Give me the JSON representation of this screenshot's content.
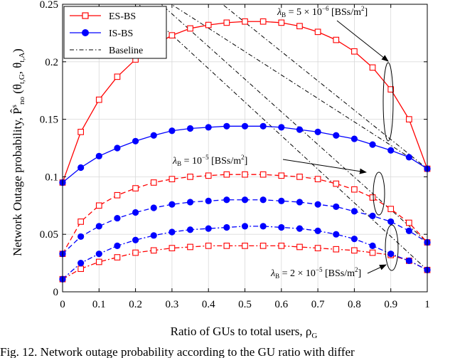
{
  "chart_data": {
    "type": "line",
    "xlabel": "Ratio of GUs to total users, ρ",
    "xlabel_sub": "G",
    "ylabel": "Network Outage probability, P̂",
    "ylabel_sup": "s",
    "ylabel_sub": "no",
    "ylabel_args": " (θ",
    "ylabel_args_sub1": "t,G",
    "ylabel_args_mid": ", θ",
    "ylabel_args_sub2": "t,A",
    "ylabel_args_end": ")",
    "xlim": [
      0,
      1
    ],
    "ylim": [
      0,
      0.25
    ],
    "xticks": [
      0,
      0.1,
      0.2,
      0.3,
      0.4,
      0.5,
      0.6,
      0.7,
      0.8,
      0.9,
      1
    ],
    "xtick_labels": [
      "0",
      "0.1",
      "0.2",
      "0.3",
      "0.4",
      "0.5",
      "0.6",
      "0.7",
      "0.8",
      "0.9",
      "1"
    ],
    "yticks": [
      0,
      0.05,
      0.1,
      0.15,
      0.2,
      0.25
    ],
    "ytick_labels": [
      "0",
      "0.05",
      "0.1",
      "0.15",
      "0.2",
      "0.25"
    ],
    "grid": true,
    "legend_placement": "top-left",
    "legend": [
      {
        "name": "ES-BS",
        "style": "es"
      },
      {
        "name": "IS-BS",
        "style": "is"
      },
      {
        "name": "Baseline",
        "style": "base"
      }
    ],
    "colors": {
      "es": "#ff0000",
      "is": "#0000ff",
      "baseline": "#000000"
    },
    "x": [
      0,
      0.05,
      0.1,
      0.15,
      0.2,
      0.25,
      0.3,
      0.35,
      0.4,
      0.45,
      0.5,
      0.55,
      0.6,
      0.65,
      0.7,
      0.75,
      0.8,
      0.85,
      0.9,
      0.95,
      1
    ],
    "series": [
      {
        "group": "5e-6",
        "kind": "ES-BS",
        "dash": "solid",
        "values": [
          0.095,
          0.139,
          0.167,
          0.187,
          0.202,
          0.214,
          0.223,
          0.229,
          0.232,
          0.234,
          0.235,
          0.235,
          0.234,
          0.231,
          0.226,
          0.219,
          0.209,
          0.195,
          0.176,
          0.15,
          0.107
        ]
      },
      {
        "group": "5e-6",
        "kind": "IS-BS",
        "dash": "solid",
        "values": [
          0.095,
          0.108,
          0.118,
          0.125,
          0.131,
          0.136,
          0.14,
          0.142,
          0.143,
          0.144,
          0.144,
          0.144,
          0.143,
          0.141,
          0.139,
          0.136,
          0.133,
          0.128,
          0.123,
          0.117,
          0.107
        ]
      },
      {
        "group": "1e-5",
        "kind": "ES-BS",
        "dash": "dashed",
        "values": [
          0.033,
          0.061,
          0.075,
          0.084,
          0.09,
          0.095,
          0.098,
          0.1,
          0.101,
          0.102,
          0.102,
          0.102,
          0.101,
          0.1,
          0.098,
          0.094,
          0.089,
          0.082,
          0.072,
          0.06,
          0.043
        ]
      },
      {
        "group": "1e-5",
        "kind": "IS-BS",
        "dash": "dashed",
        "values": [
          0.033,
          0.048,
          0.057,
          0.064,
          0.069,
          0.073,
          0.076,
          0.078,
          0.079,
          0.08,
          0.08,
          0.08,
          0.079,
          0.078,
          0.076,
          0.074,
          0.07,
          0.066,
          0.061,
          0.053,
          0.043
        ]
      },
      {
        "group": "2e-5",
        "kind": "ES-BS",
        "dash": "dashdot",
        "values": [
          0.011,
          0.02,
          0.026,
          0.03,
          0.034,
          0.036,
          0.038,
          0.039,
          0.04,
          0.04,
          0.04,
          0.04,
          0.04,
          0.039,
          0.038,
          0.037,
          0.036,
          0.034,
          0.032,
          0.027,
          0.019
        ]
      },
      {
        "group": "2e-5",
        "kind": "IS-BS",
        "dash": "dashdot",
        "values": [
          0.011,
          0.025,
          0.033,
          0.04,
          0.045,
          0.049,
          0.052,
          0.054,
          0.055,
          0.056,
          0.057,
          0.057,
          0.056,
          0.055,
          0.053,
          0.05,
          0.046,
          0.04,
          0.033,
          0.027,
          0.019
        ]
      }
    ],
    "baselines": [
      {
        "x": [
          0.2,
          1.0
        ],
        "y": [
          0.27,
          0.107
        ]
      },
      {
        "x": [
          0.36,
          1.0
        ],
        "y": [
          0.27,
          0.107
        ]
      },
      {
        "x": [
          0.2,
          1.0
        ],
        "y": [
          0.27,
          0.043
        ]
      },
      {
        "x": [
          0.14,
          1.0
        ],
        "y": [
          0.27,
          0.019
        ]
      }
    ],
    "annotations": [
      {
        "id": "ann-5e-6",
        "lambda": "λ",
        "sub": "B",
        "eq": " = 5 × 10",
        "sup": "−6",
        "unit": " [BSs/m",
        "unit_sup": "2",
        "unit_end": "]"
      },
      {
        "id": "ann-1e-5",
        "lambda": "λ",
        "sub": "B",
        "eq": " = 10",
        "sup": "−5",
        "unit": " [BSs/m",
        "unit_sup": "2",
        "unit_end": "]"
      },
      {
        "id": "ann-2e-5",
        "lambda": "λ",
        "sub": "B",
        "eq": " = 2 × 10",
        "sup": "−5",
        "unit": " [BSs/m",
        "unit_sup": "2",
        "unit_end": "]"
      }
    ]
  },
  "caption": {
    "text": "Fig. 12.   Network outage probability according to the GU ratio with differ"
  }
}
